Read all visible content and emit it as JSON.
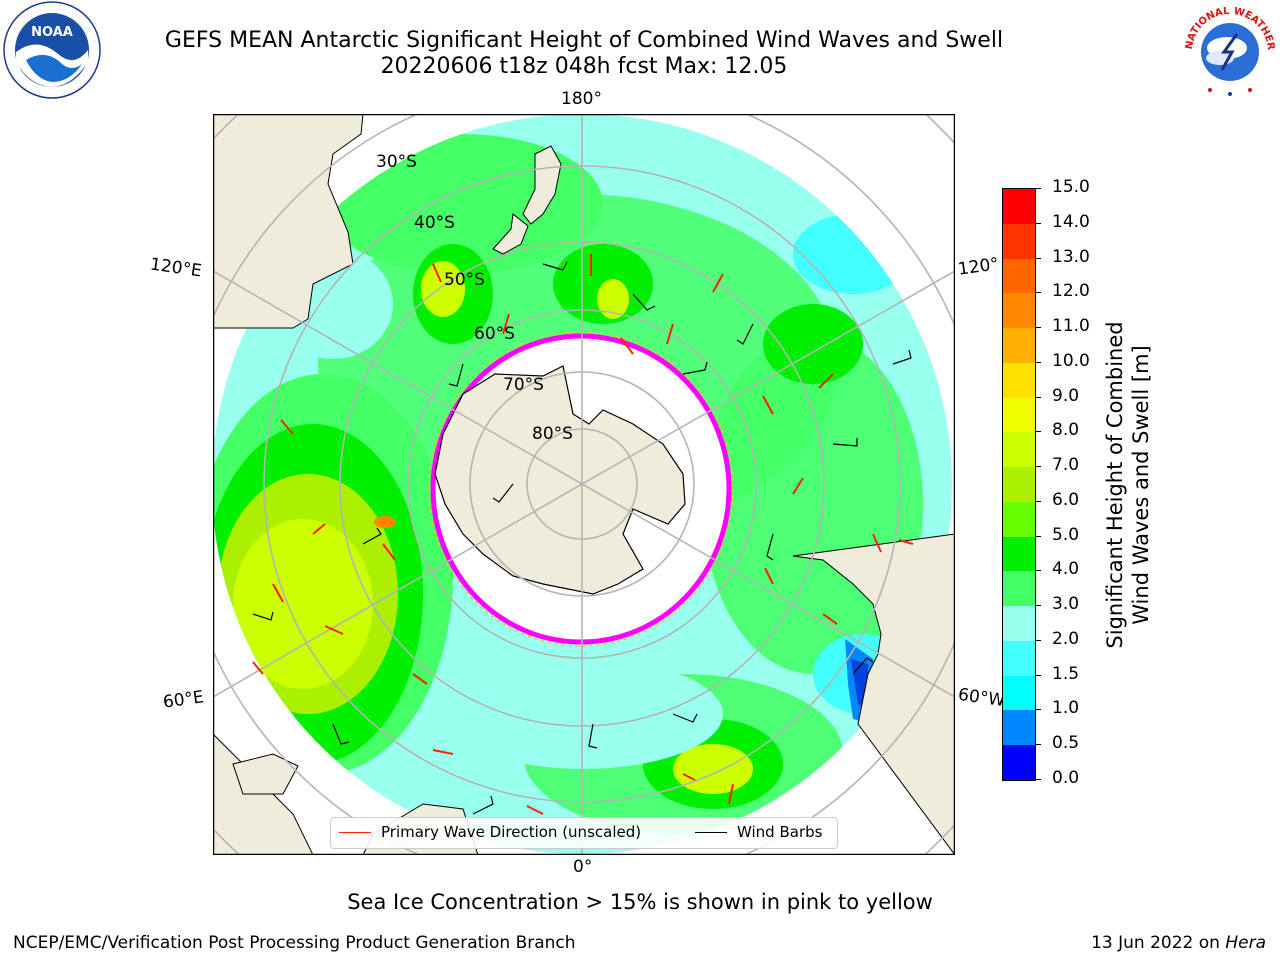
{
  "title": {
    "line1": "GEFS MEAN Antarctic Significant Height of Combined Wind Waves and Swell",
    "line2": "20220606 t18z 048h fcst   Max: 12.05"
  },
  "map": {
    "lon_labels": [
      "180°",
      "120°E",
      "120°",
      "60°E",
      "60°W",
      "0°"
    ],
    "lat_labels": [
      "30°S",
      "40°S",
      "50°S",
      "60°S",
      "70°S",
      "80°S"
    ],
    "colors": {
      "land": "#efecdc",
      "sea_ice": "#ffffff",
      "ice_edge": "#ff00ff",
      "graticule": "#b4b4b4"
    },
    "legend": {
      "wave_direction": "Primary Wave Direction (unscaled)",
      "wind_barbs": "Wind Barbs",
      "wave_color": "#ff2200",
      "barb_color": "#000000"
    }
  },
  "colorbar": {
    "label_line1": "Significant Height of Combined",
    "label_line2": "Wind Waves and Swell [m]",
    "ticks": [
      "15.0",
      "14.0",
      "13.0",
      "12.0",
      "11.0",
      "10.0",
      "9.0",
      "8.0",
      "7.0",
      "6.0",
      "5.0",
      "4.0",
      "3.0",
      "2.0",
      "1.5",
      "1.0",
      "0.5",
      "0.0"
    ],
    "colors": [
      "#ff0000",
      "#ff3300",
      "#ff6600",
      "#ff8800",
      "#ffb000",
      "#ffe000",
      "#eeff00",
      "#ccff00",
      "#aaf000",
      "#66ff00",
      "#00ee00",
      "#44ff66",
      "#99ffee",
      "#44ffff",
      "#00ffff",
      "#0088ff",
      "#0000ff"
    ]
  },
  "logos": {
    "noaa_text": "NOAA",
    "nws_text": "NATIONAL WEATHER SERVICE"
  },
  "footer": {
    "note": "Sea Ice Concentration > 15% is shown in pink to yellow",
    "left": "NCEP/EMC/Verification Post Processing Product Generation Branch",
    "right_date": "13 Jun 2022 on ",
    "right_host": "Hera"
  }
}
